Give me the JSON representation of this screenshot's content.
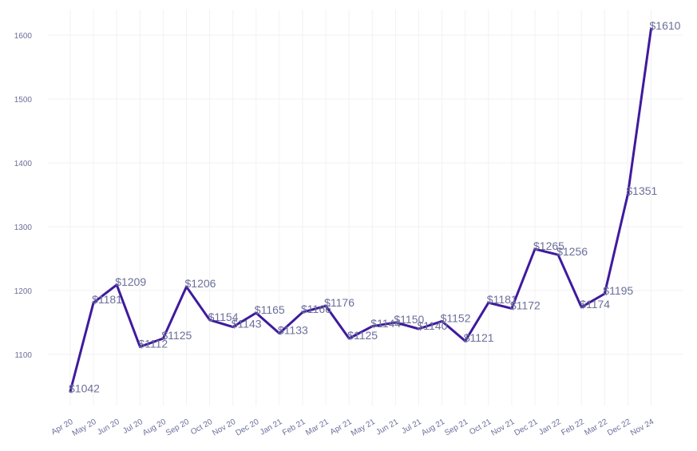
{
  "chart_data": {
    "type": "line",
    "title": "",
    "xlabel": "",
    "ylabel": "",
    "categories": [
      "Apr 20",
      "May 20",
      "Jun 20",
      "Jul 20",
      "Aug 20",
      "Sep 20",
      "Oct 20",
      "Nov 20",
      "Dec 20",
      "Jan 21",
      "Feb 21",
      "Mar 21",
      "Apr 21",
      "May 21",
      "Jun 21",
      "Jul 21",
      "Aug 21",
      "Sep 21",
      "Oct 21",
      "Nov 21",
      "Dec 21",
      "Jan 22",
      "Feb 22",
      "Mar 22",
      "Dec 22",
      "Nov 24"
    ],
    "values": [
      1042,
      1181,
      1209,
      1112,
      1125,
      1206,
      1154,
      1143,
      1165,
      1133,
      1166,
      1176,
      1125,
      1144,
      1150,
      1140,
      1152,
      1121,
      1181,
      1172,
      1265,
      1256,
      1174,
      1195,
      1351,
      1610
    ],
    "data_labels": [
      "$1042",
      "$1181",
      "$1209",
      "$1112",
      "$1125",
      "$1206",
      "$1154",
      "$1143",
      "$1165",
      "$1133",
      "$1166",
      "$1176",
      "$1125",
      "$1144",
      "$1150",
      "$1140",
      "$1152",
      "$1121",
      "$1181",
      "$1172",
      "$1265",
      "$1256",
      "$1174",
      "$1195",
      "$1351",
      "$1610"
    ],
    "y_ticks": [
      "1100",
      "1200",
      "1300",
      "1400",
      "1500",
      "1600"
    ],
    "ylim": [
      1015,
      1625
    ],
    "grid": true,
    "colors": {
      "line": "#3f1a9e",
      "text": "#6b6f9a",
      "grid": "#f2f2f2"
    }
  }
}
